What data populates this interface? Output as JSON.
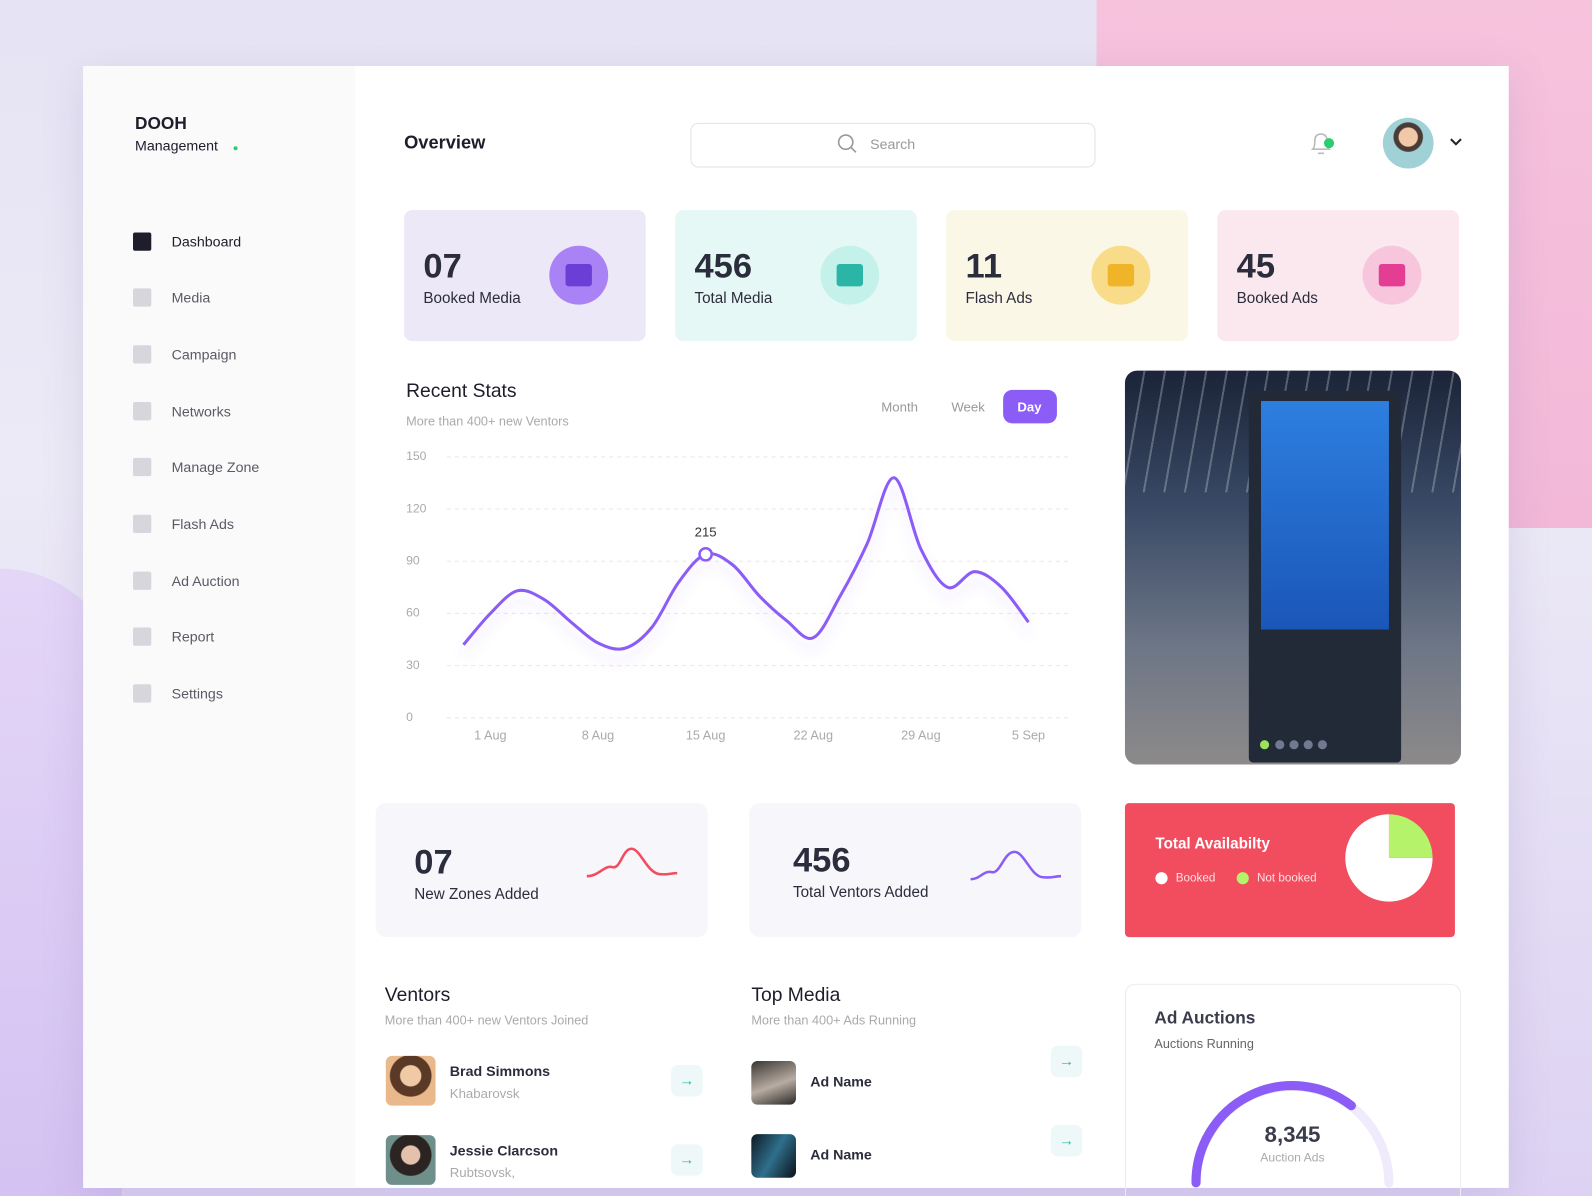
{
  "brand": {
    "name": "DOOH",
    "sub": "Management"
  },
  "nav": [
    "Dashboard",
    "Media",
    "Campaign",
    "Networks",
    "Manage Zone",
    "Flash Ads",
    "Ad Auction",
    "Report",
    "Settings"
  ],
  "header": {
    "title": "Overview",
    "search": "Search"
  },
  "kpis": [
    {
      "value": "07",
      "label": "Booked Media"
    },
    {
      "value": "456",
      "label": "Total Media"
    },
    {
      "value": "11",
      "label": "Flash Ads"
    },
    {
      "value": "45",
      "label": "Booked Ads"
    }
  ],
  "tabs": [
    "Month",
    "Week",
    "Day"
  ],
  "chart_data": [
    {
      "type": "line",
      "title": "Recent Stats",
      "subtitle": "More than 400+ new Ventors",
      "categories": [
        null,
        "1 Aug",
        null,
        null,
        null,
        "8 Aug",
        null,
        null,
        null,
        "15 Aug",
        null,
        null,
        null,
        "22 Aug",
        null,
        null,
        null,
        "29 Aug",
        null,
        null,
        null,
        "5 Sep"
      ],
      "series": [
        {
          "name": "Ventors",
          "color": "#8b5cf6",
          "values": [
            42,
            60,
            73,
            68,
            55,
            43,
            40,
            52,
            78,
            94,
            88,
            70,
            56,
            46,
            70,
            100,
            138,
            97,
            75,
            84,
            75,
            55
          ]
        }
      ],
      "annotation": "215",
      "ylim": [
        0,
        150
      ],
      "yticks": [
        0,
        30,
        60,
        90,
        120,
        150
      ],
      "grid": true
    },
    {
      "type": "pie",
      "title": "Total Availabilty",
      "categories": [
        "Booked",
        "Not booked"
      ],
      "values": [
        75,
        25
      ],
      "colors": [
        "#ffffff",
        "#b5f36a"
      ]
    }
  ],
  "stats": [
    {
      "value": "07",
      "label": "New Zones Added"
    },
    {
      "value": "456",
      "label": "Total Ventors Added"
    }
  ],
  "ventors": {
    "title": "Ventors",
    "subtitle": "More than 400+ new Ventors Joined",
    "items": [
      {
        "name": "Brad Simmons",
        "city": "Khabarovsk"
      },
      {
        "name": "Jessie Clarcson",
        "city": "Rubtsovsk,"
      }
    ]
  },
  "top_media": {
    "title": "Top Media",
    "subtitle": "More than 400+ Ads Running",
    "items": [
      "Ad Name",
      "Ad Name"
    ]
  },
  "ad_auctions": {
    "title": "Ad Auctions",
    "subtitle": "Auctions Running",
    "value": "8,345",
    "caption": "Auction Ads"
  }
}
